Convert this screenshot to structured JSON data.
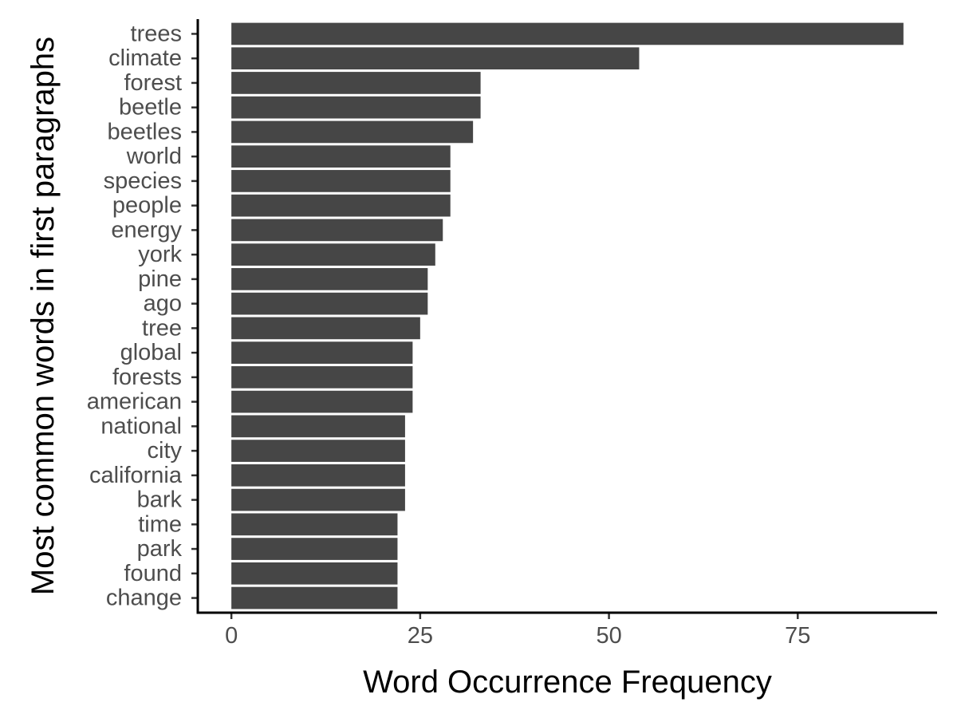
{
  "chart_data": {
    "type": "bar",
    "orientation": "horizontal",
    "categories": [
      "trees",
      "climate",
      "forest",
      "beetle",
      "beetles",
      "world",
      "species",
      "people",
      "energy",
      "york",
      "pine",
      "ago",
      "tree",
      "global",
      "forests",
      "american",
      "national",
      "city",
      "california",
      "bark",
      "time",
      "park",
      "found",
      "change"
    ],
    "values": [
      89,
      54,
      33,
      33,
      32,
      29,
      29,
      29,
      28,
      27,
      26,
      26,
      25,
      24,
      24,
      24,
      23,
      23,
      23,
      23,
      22,
      22,
      22,
      22
    ],
    "xlabel": "Word Occurrence Frequency",
    "ylabel": "Most common words in first paragraphs",
    "xlim": [
      -4.45,
      93.45
    ],
    "xticks": [
      0,
      25,
      50,
      75
    ],
    "xtick_labels": [
      "0",
      "25",
      "50",
      "75"
    ],
    "grid": false,
    "legend": "none",
    "bar_color": "#464646",
    "axis_color": "#000000"
  }
}
